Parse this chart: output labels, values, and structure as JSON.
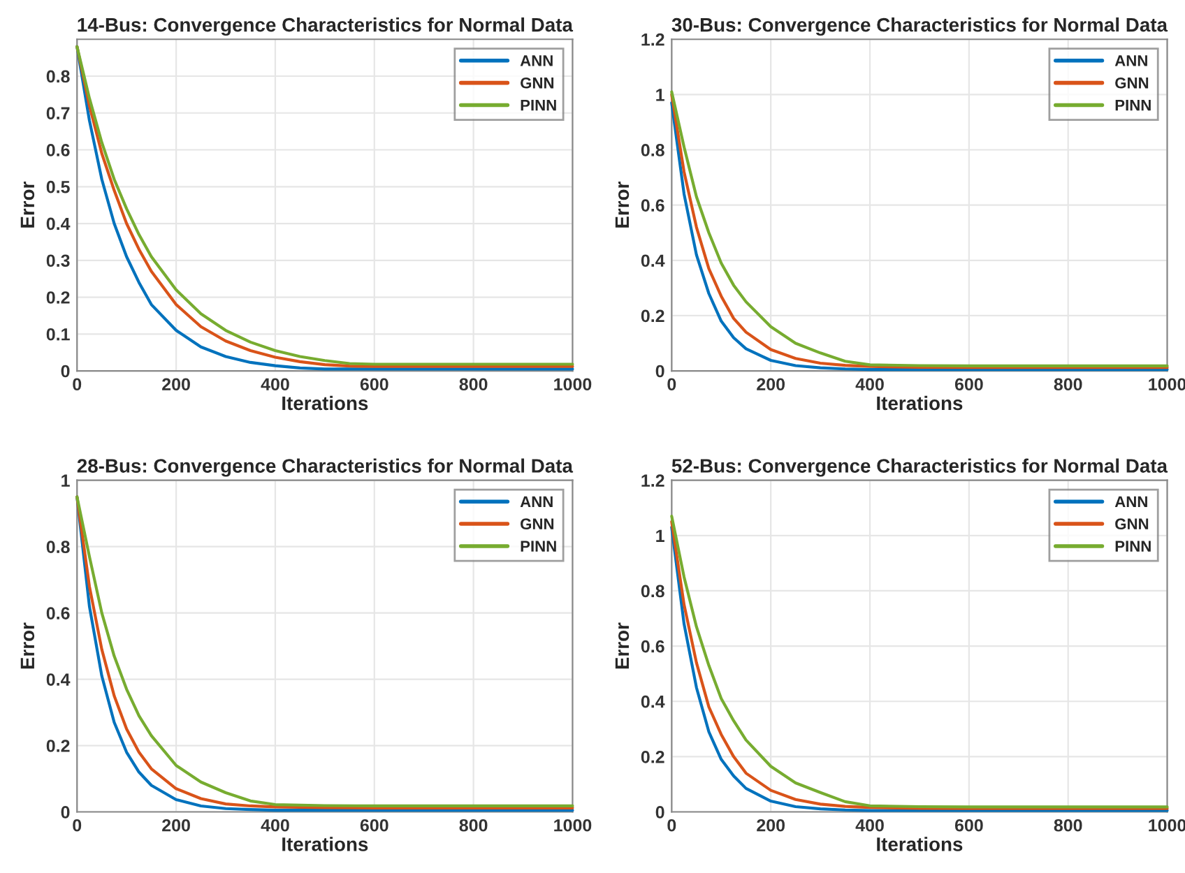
{
  "chart_data": [
    {
      "type": "line",
      "title": "14-Bus: Convergence Characteristics for Normal Data",
      "xlabel": "Iterations",
      "ylabel": "Error",
      "x": [
        0,
        25,
        50,
        75,
        100,
        125,
        150,
        200,
        250,
        300,
        350,
        400,
        450,
        500,
        550,
        600,
        800,
        1000
      ],
      "series": [
        {
          "name": "ANN",
          "color": "#0072bd",
          "values": [
            0.88,
            0.68,
            0.52,
            0.4,
            0.31,
            0.24,
            0.18,
            0.11,
            0.065,
            0.039,
            0.023,
            0.014,
            0.008,
            0.005,
            0.005,
            0.005,
            0.005,
            0.005
          ]
        },
        {
          "name": "GNN",
          "color": "#d95319",
          "values": [
            0.88,
            0.72,
            0.59,
            0.49,
            0.4,
            0.33,
            0.27,
            0.18,
            0.12,
            0.081,
            0.055,
            0.037,
            0.025,
            0.017,
            0.013,
            0.012,
            0.012,
            0.012
          ]
        },
        {
          "name": "PINN",
          "color": "#77ac30",
          "values": [
            0.88,
            0.74,
            0.62,
            0.52,
            0.44,
            0.37,
            0.31,
            0.22,
            0.155,
            0.11,
            0.078,
            0.055,
            0.039,
            0.028,
            0.02,
            0.018,
            0.018,
            0.018
          ]
        }
      ],
      "xlim": [
        0,
        1000
      ],
      "xticks": [
        0,
        200,
        400,
        600,
        800,
        1000
      ],
      "ylim": [
        0,
        0.9
      ],
      "yticks": [
        0,
        0.1,
        0.2,
        0.3,
        0.4,
        0.5,
        0.6,
        0.7,
        0.8
      ],
      "grid": true,
      "legend": "top right",
      "line_style": "solid"
    },
    {
      "type": "line",
      "title": "30-Bus: Convergence Characteristics for Normal Data",
      "xlabel": "Iterations",
      "ylabel": "Error",
      "x": [
        0,
        25,
        50,
        75,
        100,
        125,
        150,
        200,
        250,
        300,
        350,
        400,
        500,
        600,
        800,
        1000
      ],
      "series": [
        {
          "name": "ANN",
          "color": "#0072bd",
          "values": [
            0.97,
            0.64,
            0.42,
            0.28,
            0.18,
            0.12,
            0.08,
            0.038,
            0.019,
            0.011,
            0.007,
            0.005,
            0.005,
            0.005,
            0.005,
            0.005
          ]
        },
        {
          "name": "GNN",
          "color": "#d95319",
          "values": [
            1.0,
            0.72,
            0.52,
            0.37,
            0.27,
            0.19,
            0.14,
            0.077,
            0.045,
            0.028,
            0.02,
            0.016,
            0.013,
            0.012,
            0.012,
            0.012
          ]
        },
        {
          "name": "PINN",
          "color": "#77ac30",
          "values": [
            1.01,
            0.81,
            0.63,
            0.5,
            0.39,
            0.31,
            0.25,
            0.16,
            0.1,
            0.065,
            0.035,
            0.022,
            0.019,
            0.018,
            0.018,
            0.018
          ]
        }
      ],
      "xlim": [
        0,
        1000
      ],
      "xticks": [
        0,
        200,
        400,
        600,
        800,
        1000
      ],
      "ylim": [
        0,
        1.2
      ],
      "yticks": [
        0,
        0.2,
        0.4,
        0.6,
        0.8,
        1,
        1.2
      ],
      "grid": true,
      "legend": "top right",
      "line_style": "solid"
    },
    {
      "type": "line",
      "title": "28-Bus: Convergence Characteristics for Normal Data",
      "xlabel": "Iterations",
      "ylabel": "Error",
      "x": [
        0,
        25,
        50,
        75,
        100,
        125,
        150,
        200,
        250,
        300,
        350,
        400,
        500,
        600,
        800,
        1000
      ],
      "series": [
        {
          "name": "ANN",
          "color": "#0072bd",
          "values": [
            0.95,
            0.62,
            0.41,
            0.27,
            0.18,
            0.12,
            0.08,
            0.037,
            0.018,
            0.01,
            0.007,
            0.005,
            0.005,
            0.005,
            0.005,
            0.005
          ]
        },
        {
          "name": "GNN",
          "color": "#d95319",
          "values": [
            0.95,
            0.68,
            0.49,
            0.35,
            0.25,
            0.18,
            0.13,
            0.07,
            0.04,
            0.024,
            0.018,
            0.015,
            0.013,
            0.012,
            0.012,
            0.012
          ]
        },
        {
          "name": "PINN",
          "color": "#77ac30",
          "values": [
            0.95,
            0.77,
            0.6,
            0.47,
            0.37,
            0.29,
            0.23,
            0.14,
            0.09,
            0.058,
            0.033,
            0.022,
            0.019,
            0.018,
            0.018,
            0.018
          ]
        }
      ],
      "xlim": [
        0,
        1000
      ],
      "xticks": [
        0,
        200,
        400,
        600,
        800,
        1000
      ],
      "ylim": [
        0,
        1
      ],
      "yticks": [
        0,
        0.2,
        0.4,
        0.6,
        0.8,
        1
      ],
      "grid": true,
      "legend": "top right",
      "line_style": "solid"
    },
    {
      "type": "line",
      "title": "52-Bus: Convergence Characteristics for Normal Data",
      "xlabel": "Iterations",
      "ylabel": "Error",
      "x": [
        0,
        25,
        50,
        75,
        100,
        125,
        150,
        200,
        250,
        300,
        350,
        400,
        500,
        600,
        800,
        1000
      ],
      "series": [
        {
          "name": "ANN",
          "color": "#0072bd",
          "values": [
            1.03,
            0.68,
            0.45,
            0.29,
            0.19,
            0.13,
            0.085,
            0.039,
            0.019,
            0.011,
            0.007,
            0.005,
            0.005,
            0.005,
            0.005,
            0.005
          ]
        },
        {
          "name": "GNN",
          "color": "#d95319",
          "values": [
            1.05,
            0.75,
            0.54,
            0.38,
            0.28,
            0.2,
            0.14,
            0.078,
            0.045,
            0.028,
            0.02,
            0.016,
            0.013,
            0.012,
            0.012,
            0.012
          ]
        },
        {
          "name": "PINN",
          "color": "#77ac30",
          "values": [
            1.07,
            0.85,
            0.67,
            0.53,
            0.41,
            0.33,
            0.26,
            0.165,
            0.105,
            0.07,
            0.037,
            0.022,
            0.019,
            0.018,
            0.018,
            0.018
          ]
        }
      ],
      "xlim": [
        0,
        1000
      ],
      "xticks": [
        0,
        200,
        400,
        600,
        800,
        1000
      ],
      "ylim": [
        0,
        1.2
      ],
      "yticks": [
        0,
        0.2,
        0.4,
        0.6,
        0.8,
        1,
        1.2
      ],
      "grid": true,
      "legend": "top right",
      "line_style": "solid"
    }
  ]
}
